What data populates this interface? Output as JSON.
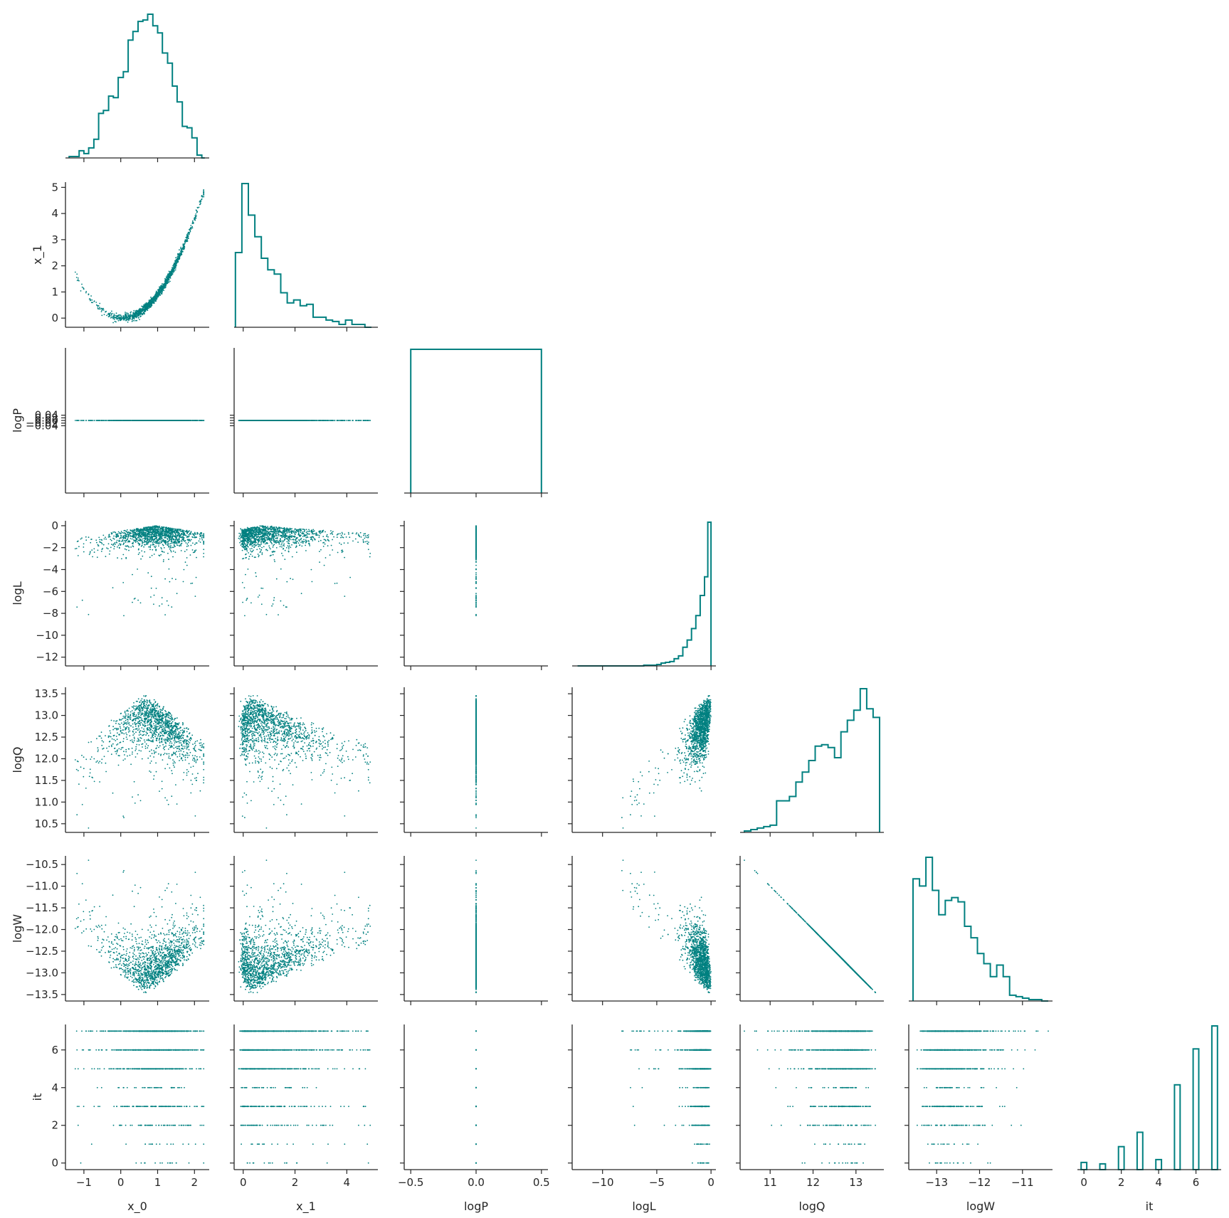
{
  "color": "#008080",
  "chart_data": {
    "type": "scatter",
    "grid": false,
    "variables": [
      "x_0",
      "x_1",
      "logP",
      "logL",
      "logQ",
      "logW",
      "it"
    ],
    "axis_labels": {
      "x_0": "x_0",
      "x_1": "x_1",
      "logP": "logP",
      "logL": "logL",
      "logQ": "logQ",
      "logW": "logW",
      "it": "it"
    },
    "ranges": {
      "x_0": [
        -1.5,
        2.4
      ],
      "x_1": [
        -0.35,
        5.2
      ],
      "logP": [
        -0.55,
        0.55
      ],
      "logL": [
        -12.8,
        0.45
      ],
      "logQ": [
        10.3,
        13.65
      ],
      "logW": [
        -13.65,
        -10.3
      ],
      "it": [
        -0.35,
        7.35
      ]
    },
    "ticks": {
      "x_0": [
        -1,
        0,
        1,
        2
      ],
      "x_1": [
        0,
        1,
        2,
        3,
        4,
        5
      ],
      "logP": [
        -0.04,
        -0.02,
        0.0,
        0.02,
        0.04
      ],
      "logL": [
        -12,
        -10,
        -8,
        -6,
        -4,
        -2,
        0
      ],
      "logQ": [
        10.5,
        11.0,
        11.5,
        12.0,
        12.5,
        13.0,
        13.5
      ],
      "logW": [
        -13.5,
        -13.0,
        -12.5,
        -12.0,
        -11.5,
        -11.0,
        -10.5
      ],
      "it": [
        0,
        2,
        4,
        6
      ]
    },
    "bottom_ticks": {
      "x_0": [
        -1,
        0,
        1,
        2
      ],
      "x_1": [
        0,
        2,
        4
      ],
      "logP": [
        -0.5,
        0.0,
        0.5
      ],
      "logL": [
        -10,
        -5,
        0
      ],
      "logQ": [
        11,
        12,
        13
      ],
      "logW": [
        -13,
        -12,
        -11
      ],
      "it": [
        0,
        2,
        4,
        6
      ]
    },
    "tick_labels": {
      "x_1": [
        "0",
        "1",
        "2",
        "3",
        "4",
        "5"
      ],
      "logP": [
        "−0.04",
        "−0.02",
        "0.00",
        "0.02",
        "0.04"
      ],
      "logL": [
        "−12",
        "−10",
        "−8",
        "−6",
        "−4",
        "−2",
        "0"
      ],
      "logQ": [
        "10.5",
        "11.0",
        "11.5",
        "12.0",
        "12.5",
        "13.0",
        "13.5"
      ],
      "logW": [
        "−13.5",
        "−13.0",
        "−12.5",
        "−12.0",
        "−11.5",
        "−11.0",
        "−10.5"
      ],
      "it": [
        "0",
        "2",
        "4",
        "6"
      ]
    },
    "bottom_tick_labels": {
      "x_0": [
        "−1",
        "0",
        "1",
        "2"
      ],
      "x_1": [
        "0",
        "2",
        "4"
      ],
      "logP": [
        "−0.5",
        "0.0",
        "0.5"
      ],
      "logL": [
        "−10",
        "−5",
        "0"
      ],
      "logQ": [
        "11",
        "12",
        "13"
      ],
      "logW": [
        "−13",
        "−12",
        "−11"
      ],
      "it": [
        "0",
        "2",
        "4",
        "6"
      ]
    },
    "histograms": {
      "x_0": {
        "style": "step",
        "edges": [
          -1.4,
          -1.27,
          -1.13,
          -1.0,
          -0.87,
          -0.73,
          -0.6,
          -0.47,
          -0.33,
          -0.2,
          -0.07,
          0.07,
          0.2,
          0.33,
          0.47,
          0.6,
          0.73,
          0.87,
          1.0,
          1.13,
          1.27,
          1.4,
          1.53,
          1.67,
          1.8,
          1.93,
          2.07,
          2.2,
          2.28
        ],
        "counts": [
          0.01,
          0.01,
          0.05,
          0.03,
          0.07,
          0.13,
          0.31,
          0.33,
          0.43,
          0.42,
          0.56,
          0.6,
          0.82,
          0.88,
          0.95,
          0.96,
          1.0,
          0.92,
          0.87,
          0.73,
          0.66,
          0.5,
          0.39,
          0.22,
          0.21,
          0.14,
          0.02,
          0.0
        ]
      },
      "x_1": {
        "style": "step",
        "edges": [
          -0.3,
          -0.05,
          0.2,
          0.45,
          0.7,
          0.95,
          1.2,
          1.45,
          1.7,
          1.95,
          2.2,
          2.45,
          2.7,
          2.95,
          3.2,
          3.45,
          3.7,
          3.95,
          4.2,
          4.45,
          4.7,
          4.95
        ],
        "counts": [
          0.52,
          1.0,
          0.78,
          0.63,
          0.48,
          0.4,
          0.37,
          0.24,
          0.17,
          0.19,
          0.15,
          0.16,
          0.07,
          0.07,
          0.05,
          0.04,
          0.02,
          0.05,
          0.02,
          0.02,
          0.0
        ]
      },
      "logP": {
        "style": "step",
        "edges": [
          -0.5,
          0.5
        ],
        "counts": [
          1.0
        ]
      },
      "logL": {
        "style": "step",
        "edges": [
          -12.3,
          -11.0,
          -10.0,
          -9.0,
          -8.0,
          -7.0,
          -6.2,
          -5.5,
          -5.0,
          -4.6,
          -4.2,
          -3.8,
          -3.4,
          -3.0,
          -2.6,
          -2.2,
          -1.8,
          -1.4,
          -1.0,
          -0.6,
          -0.3,
          0.0
        ],
        "counts": [
          0.0,
          0.0,
          0.0,
          0.0,
          0.0,
          0.0,
          0.005,
          0.005,
          0.01,
          0.02,
          0.025,
          0.03,
          0.05,
          0.07,
          0.13,
          0.18,
          0.26,
          0.35,
          0.49,
          0.62,
          1.0
        ]
      },
      "logQ": {
        "style": "step",
        "edges": [
          10.4,
          10.55,
          10.7,
          10.85,
          11.0,
          11.15,
          11.3,
          11.45,
          11.6,
          11.75,
          11.9,
          12.05,
          12.2,
          12.35,
          12.5,
          12.65,
          12.8,
          12.95,
          13.1,
          13.25,
          13.4,
          13.55
        ],
        "counts": [
          0.01,
          0.02,
          0.03,
          0.04,
          0.05,
          0.22,
          0.22,
          0.25,
          0.35,
          0.42,
          0.5,
          0.6,
          0.61,
          0.59,
          0.52,
          0.7,
          0.78,
          0.85,
          1.0,
          0.86,
          0.8
        ]
      },
      "logW": {
        "style": "step",
        "edges": [
          -13.55,
          -13.4,
          -13.25,
          -13.1,
          -12.95,
          -12.8,
          -12.65,
          -12.5,
          -12.35,
          -12.2,
          -12.05,
          -11.9,
          -11.75,
          -11.6,
          -11.45,
          -11.3,
          -11.15,
          -11.0,
          -10.85,
          -10.7,
          -10.55,
          -10.4
        ],
        "counts": [
          0.85,
          0.8,
          1.0,
          0.77,
          0.6,
          0.7,
          0.72,
          0.69,
          0.52,
          0.44,
          0.33,
          0.26,
          0.17,
          0.25,
          0.17,
          0.04,
          0.03,
          0.02,
          0.01,
          0.01,
          0.0
        ]
      },
      "it": {
        "style": "bars",
        "categories": [
          0,
          1,
          2,
          3,
          4,
          5,
          6,
          7
        ],
        "counts": [
          0.05,
          0.04,
          0.16,
          0.26,
          0.07,
          0.59,
          0.84,
          1.0
        ]
      }
    },
    "relations": {
      "x_0 vs x_1": "parabola x_1 ≈ (x_0 − 0.05)², minimum near 0 at x_0 ≈ 0, reaching about 4.9 at x_0 ≈ 2.25 and 1.7 at x_0 ≈ −1.3",
      "logP": "constant 0.00 for all samples",
      "logL": "mostly between −3 and 0, sparse tail down to about −12.3; maximum near x_0 ≈ 1, x_1 ≈ 1",
      "logQ": "between about 10.4 and 13.6, peaked near x_0 ≈ 0.6",
      "logW": "logW ≈ −logQ (perfect negative linear relation)",
      "it": "integer iteration index 0 to 7"
    }
  }
}
